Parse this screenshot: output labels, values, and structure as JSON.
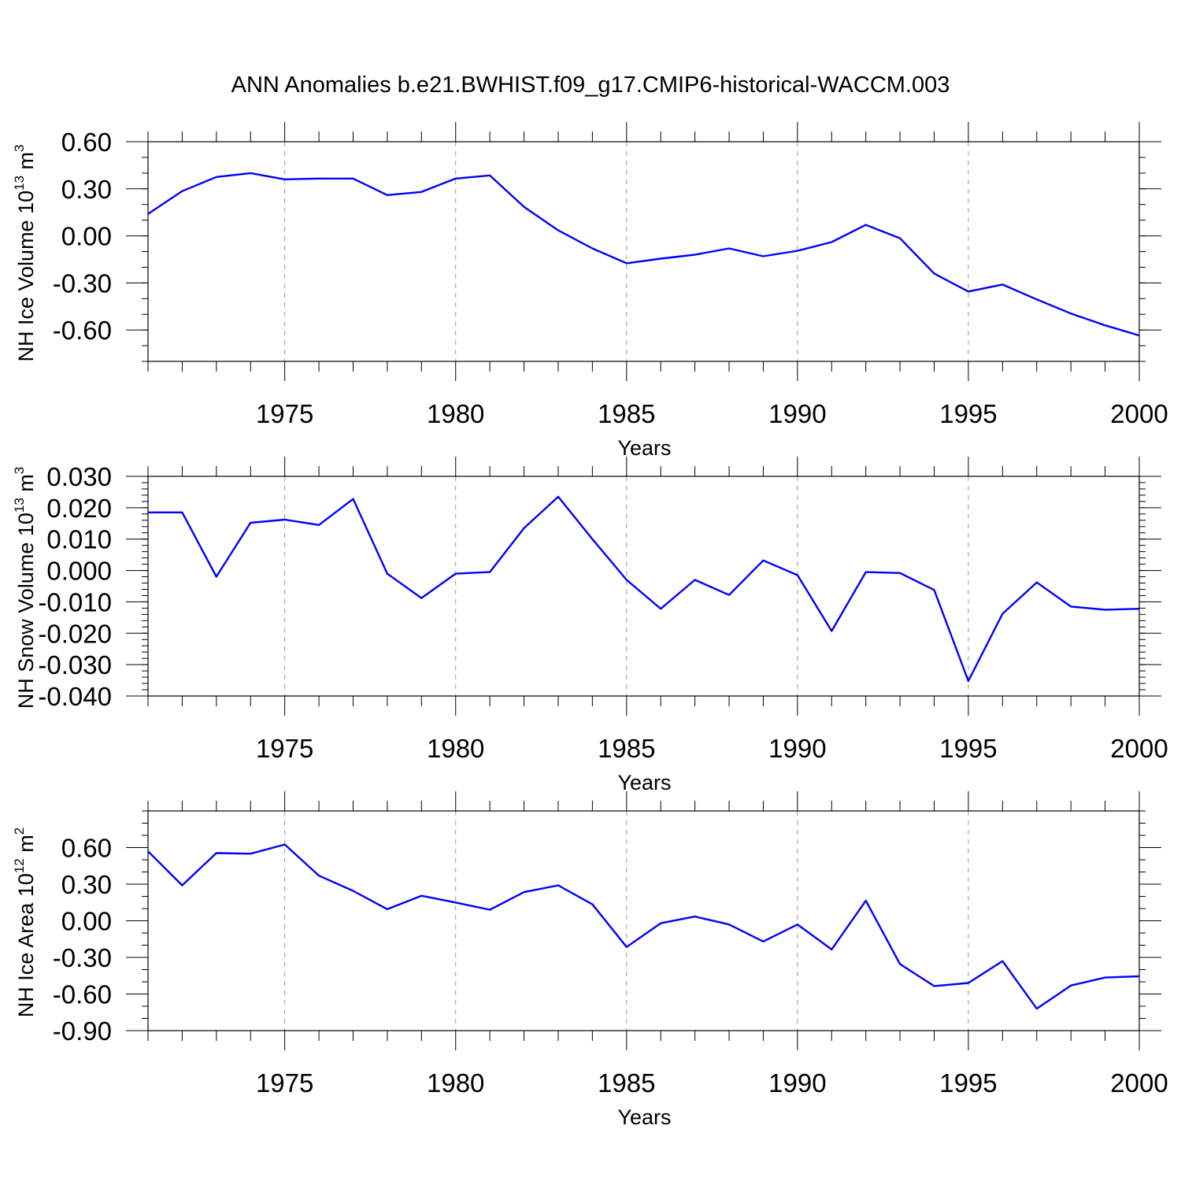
{
  "figure": {
    "title": "ANN Anomalies b.e21.BWHIST.f09_g17.CMIP6-historical-WACCM.003"
  },
  "style": {
    "line_color": "#0000ff",
    "axis_color": "#000000",
    "grid_color": "#999999"
  },
  "chart_data": [
    {
      "type": "line",
      "xlabel": "Years",
      "ylabel_prefix": "NH Ice Volume 10",
      "ylabel_exp": "13",
      "ylabel_unit": " m",
      "ylabel_unit_exp": "3",
      "xlim": [
        1971,
        2000
      ],
      "ylim": [
        -0.8,
        0.6
      ],
      "x_ticks": [
        1975,
        1980,
        1985,
        1990,
        1995,
        2000
      ],
      "y_ticks": [
        0.6,
        0.3,
        0.0,
        -0.3,
        -0.6
      ],
      "y_tick_labels": [
        "0.60",
        "0.30",
        "0.00",
        "-0.30",
        "-0.60"
      ],
      "y_minor_step": 0.1,
      "x_grid": "dashed vertical at major ticks",
      "series": [
        {
          "x": [
            1971,
            1972,
            1973,
            1974,
            1975,
            1976,
            1977,
            1978,
            1979,
            1980,
            1981,
            1982,
            1983,
            1984,
            1985,
            1986,
            1987,
            1988,
            1989,
            1990,
            1991,
            1992,
            1993,
            1994,
            1995,
            1996,
            1997,
            1998,
            1999,
            2000
          ],
          "values": [
            0.14,
            0.285,
            0.375,
            0.4,
            0.36,
            0.365,
            0.365,
            0.26,
            0.28,
            0.365,
            0.385,
            0.185,
            0.035,
            -0.08,
            -0.175,
            -0.145,
            -0.12,
            -0.08,
            -0.13,
            -0.095,
            -0.04,
            0.07,
            -0.015,
            -0.24,
            -0.355,
            -0.31,
            -0.405,
            -0.495,
            -0.57,
            -0.635
          ]
        }
      ]
    },
    {
      "type": "line",
      "xlabel": "Years",
      "ylabel_prefix": "NH Snow Volume 10",
      "ylabel_exp": "13",
      "ylabel_unit": " m",
      "ylabel_unit_exp": "3",
      "xlim": [
        1971,
        2000
      ],
      "ylim": [
        -0.04,
        0.03
      ],
      "x_ticks": [
        1975,
        1980,
        1985,
        1990,
        1995,
        2000
      ],
      "y_ticks": [
        0.03,
        0.02,
        0.01,
        0.0,
        -0.01,
        -0.02,
        -0.03,
        -0.04
      ],
      "y_tick_labels": [
        "0.030",
        "0.020",
        "0.010",
        "0.000",
        "-0.010",
        "-0.020",
        "-0.030",
        "-0.040"
      ],
      "y_minor_step": 0.002,
      "x_grid": "dashed vertical at major ticks",
      "series": [
        {
          "x": [
            1971,
            1972,
            1973,
            1974,
            1975,
            1976,
            1977,
            1978,
            1979,
            1980,
            1981,
            1982,
            1983,
            1984,
            1985,
            1986,
            1987,
            1988,
            1989,
            1990,
            1991,
            1992,
            1993,
            1994,
            1995,
            1996,
            1997,
            1998,
            1999,
            2000
          ],
          "values": [
            0.0185,
            0.0185,
            -0.002,
            0.0152,
            0.0162,
            0.0145,
            0.0228,
            -0.001,
            -0.0088,
            -0.001,
            -0.0005,
            0.0135,
            0.0235,
            0.01,
            -0.003,
            -0.0122,
            -0.003,
            -0.0078,
            0.0032,
            -0.0015,
            -0.0193,
            -0.0005,
            -0.0008,
            -0.0062,
            -0.0352,
            -0.0138,
            -0.0038,
            -0.0115,
            -0.0125,
            -0.0122
          ]
        }
      ]
    },
    {
      "type": "line",
      "xlabel": "Years",
      "ylabel_prefix": "NH Ice Area 10",
      "ylabel_exp": "12",
      "ylabel_unit": " m",
      "ylabel_unit_exp": "2",
      "xlim": [
        1971,
        2000
      ],
      "ylim": [
        -0.9,
        0.9
      ],
      "x_ticks": [
        1975,
        1980,
        1985,
        1990,
        1995,
        2000
      ],
      "y_ticks": [
        0.6,
        0.3,
        0.0,
        -0.3,
        -0.6,
        -0.9
      ],
      "y_tick_labels": [
        "0.60",
        "0.30",
        "0.00",
        "-0.30",
        "-0.60",
        "-0.90"
      ],
      "y_minor_step": 0.1,
      "x_grid": "dashed vertical at major ticks",
      "series": [
        {
          "x": [
            1971,
            1972,
            1973,
            1974,
            1975,
            1976,
            1977,
            1978,
            1979,
            1980,
            1981,
            1982,
            1983,
            1984,
            1985,
            1986,
            1987,
            1988,
            1989,
            1990,
            1991,
            1992,
            1993,
            1994,
            1995,
            1996,
            1997,
            1998,
            1999,
            2000
          ],
          "values": [
            0.57,
            0.29,
            0.555,
            0.55,
            0.625,
            0.37,
            0.245,
            0.095,
            0.205,
            0.15,
            0.09,
            0.235,
            0.29,
            0.135,
            -0.215,
            -0.02,
            0.035,
            -0.03,
            -0.17,
            -0.03,
            -0.235,
            0.165,
            -0.355,
            -0.535,
            -0.51,
            -0.33,
            -0.72,
            -0.53,
            -0.465,
            -0.455
          ]
        }
      ]
    }
  ]
}
